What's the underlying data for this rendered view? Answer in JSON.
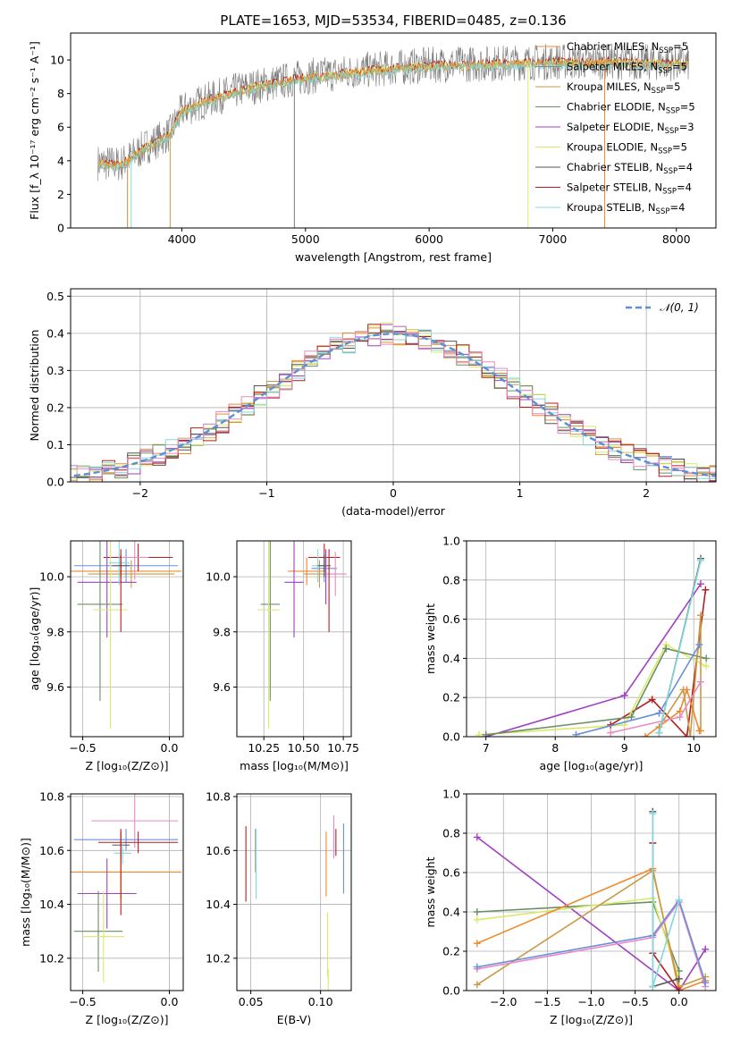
{
  "figure_title": "PLATE=1653, MJD=53534, FIBERID=0485, z=0.136",
  "colors": {
    "Chabrier MILES": "#ee8a2e",
    "Salpeter MILES": "#8a8a8a",
    "Kroupa MILES": "#c89a45",
    "Chabrier ELODIE": "#6a8f64",
    "Salpeter ELODIE": "#a040c0",
    "Kroupa ELODIE": "#d9ea6a",
    "Chabrier STELIB": "#555555",
    "Salpeter STELIB": "#b41e1e",
    "Kroupa STELIB": "#82d8dc",
    "extra_pink": "#e78ac3",
    "extra_blue": "#6a8fd8",
    "normal": "#5b8fd6",
    "spectrum": "#7a7a7a",
    "grid": "#b0b0b0"
  },
  "chart_data": [
    {
      "id": "spectrum",
      "type": "line",
      "title": "PLATE=1653, MJD=53534, FIBERID=0485, z=0.136",
      "xlabel": "wavelength [Angstrom, rest frame]",
      "ylabel": "Flux [f_λ 10⁻¹⁷ erg cm⁻² s⁻¹ A⁻¹]",
      "xlim": [
        3100,
        8320
      ],
      "ylim": [
        0,
        11.6
      ],
      "xticks": [
        4000,
        5000,
        6000,
        7000,
        8000
      ],
      "yticks": [
        0,
        2,
        4,
        6,
        8,
        10
      ],
      "grid": false,
      "legend_position": "top-right",
      "legend": [
        {
          "label": "Chabrier MILES, N",
          "sub": "SSP",
          "val": "=5"
        },
        {
          "label": "Salpeter MILES, N",
          "sub": "SSP",
          "val": "=5"
        },
        {
          "label": "Kroupa MILES, N",
          "sub": "SSP",
          "val": "=5"
        },
        {
          "label": "Chabrier ELODIE, N",
          "sub": "SSP",
          "val": "=5"
        },
        {
          "label": "Salpeter ELODIE, N",
          "sub": "SSP",
          "val": "=3"
        },
        {
          "label": "Kroupa ELODIE, N",
          "sub": "SSP",
          "val": "=5"
        },
        {
          "label": "Chabrier STELIB, N",
          "sub": "SSP",
          "val": "=4"
        },
        {
          "label": "Salpeter STELIB, N",
          "sub": "SSP",
          "val": "=4"
        },
        {
          "label": "Kroupa STELIB, N",
          "sub": "SSP",
          "val": "=4"
        }
      ],
      "continuum": {
        "x": [
          3320,
          3500,
          3700,
          3900,
          4000,
          4200,
          4500,
          5000,
          5500,
          6000,
          6500,
          7000,
          7500,
          8100
        ],
        "y": [
          3.9,
          3.8,
          4.8,
          5.6,
          7.0,
          7.6,
          8.3,
          9.0,
          9.4,
          9.7,
          9.8,
          9.9,
          9.9,
          9.8
        ]
      }
    },
    {
      "id": "residuals",
      "type": "histogram",
      "xlabel": "(data-model)/error",
      "ylabel": "Normed distribution",
      "xlim": [
        -2.55,
        2.55
      ],
      "ylim": [
        0,
        0.52
      ],
      "xticks": [
        -2,
        -1,
        0,
        1,
        2
      ],
      "yticks": [
        0.0,
        0.1,
        0.2,
        0.3,
        0.4,
        0.5
      ],
      "grid": true,
      "legend_position": "top-right",
      "legend": [
        {
          "label": "𝒩(0, 1)"
        }
      ],
      "bin_width": 0.1
    },
    {
      "id": "age_vs_Z",
      "type": "errorbar",
      "xlabel": "Z [log₁₀(Z/Z⊙)]",
      "ylabel": "age  [log₁₀(age/yr)]",
      "xlim": [
        -0.57,
        0.08
      ],
      "ylim": [
        9.42,
        10.13
      ],
      "xticks": [
        -0.5,
        0.0
      ],
      "yticks": [
        9.6,
        9.8,
        10.0
      ],
      "points": [
        {
          "s": "Chabrier MILES",
          "x": -0.28,
          "xerr": 0.35,
          "y": 10.02,
          "yerr": 0.04
        },
        {
          "s": "Kroupa MILES",
          "x": -0.22,
          "xerr": 0.25,
          "y": 10.01,
          "yerr": 0.05
        },
        {
          "s": "extra_blue",
          "x": -0.25,
          "xerr": 0.3,
          "y": 10.04,
          "yerr": 0.06
        },
        {
          "s": "Salpeter STELIB",
          "x": -0.18,
          "xerr": 0.2,
          "y": 10.07,
          "yerr": 0.05
        },
        {
          "s": "extra_pink",
          "x": -0.2,
          "xerr": 0.08,
          "y": 10.07,
          "yerr": 0.08
        },
        {
          "s": "Salpeter ELODIE",
          "x": -0.36,
          "xerr": 0.17,
          "y": 9.98,
          "yerr": 0.2
        },
        {
          "s": "Chabrier ELODIE",
          "x": -0.4,
          "xerr": 0.13,
          "y": 9.9,
          "yerr": 0.35
        },
        {
          "s": "Kroupa ELODIE",
          "x": -0.34,
          "xerr": 0.1,
          "y": 9.88,
          "yerr": 0.43
        },
        {
          "s": "Kroupa STELIB",
          "x": -0.29,
          "xerr": 0.06,
          "y": 10.05,
          "yerr": 0.08
        },
        {
          "s": "Chabrier STELIB",
          "x": -0.28,
          "xerr": 0.05,
          "y": 10.04,
          "yerr": 0.04
        },
        {
          "s": "Salpeter STELIB",
          "x": -0.28,
          "xerr": 0.0,
          "y": 9.95,
          "yerr": 0.15
        }
      ]
    },
    {
      "id": "age_vs_mass",
      "type": "errorbar",
      "xlabel": "mass [log₁₀(M/M⊙)]",
      "ylabel": "",
      "xlim": [
        10.08,
        10.8
      ],
      "ylim": [
        9.42,
        10.13
      ],
      "xticks": [
        10.25,
        10.5,
        10.75
      ],
      "yticks": [
        9.6,
        9.8,
        10.0
      ],
      "points": [
        {
          "s": "Chabrier MILES",
          "x": 10.52,
          "xerr": 0.12,
          "y": 10.02,
          "yerr": 0.05
        },
        {
          "s": "Kroupa MILES",
          "x": 10.6,
          "xerr": 0.1,
          "y": 10.01,
          "yerr": 0.05
        },
        {
          "s": "extra_blue",
          "x": 10.63,
          "xerr": 0.08,
          "y": 10.03,
          "yerr": 0.05
        },
        {
          "s": "Salpeter STELIB",
          "x": 10.63,
          "xerr": 0.1,
          "y": 10.07,
          "yerr": 0.05
        },
        {
          "s": "extra_pink",
          "x": 10.7,
          "xerr": 0.07,
          "y": 10.01,
          "yerr": 0.08
        },
        {
          "s": "Salpeter ELODIE",
          "x": 10.44,
          "xerr": 0.06,
          "y": 9.98,
          "yerr": 0.2
        },
        {
          "s": "Chabrier ELODIE",
          "x": 10.29,
          "xerr": 0.06,
          "y": 9.9,
          "yerr": 0.35
        },
        {
          "s": "Kroupa ELODIE",
          "x": 10.28,
          "xerr": 0.07,
          "y": 9.88,
          "yerr": 0.43
        },
        {
          "s": "Kroupa STELIB",
          "x": 10.59,
          "xerr": 0.04,
          "y": 10.04,
          "yerr": 0.06
        },
        {
          "s": "Chabrier STELIB",
          "x": 10.63,
          "xerr": 0.04,
          "y": 10.04,
          "yerr": 0.04
        },
        {
          "s": "Salpeter STELIB",
          "x": 10.66,
          "xerr": 0.0,
          "y": 9.95,
          "yerr": 0.15
        },
        {
          "s": "Salpeter ELODIE",
          "x": 10.64,
          "xerr": 0.0,
          "y": 10.0,
          "yerr": 0.1
        }
      ]
    },
    {
      "id": "weight_vs_age",
      "type": "line",
      "xlabel": "age  [log₁₀(age/yr)]",
      "ylabel": "mass weight",
      "xlim": [
        6.72,
        10.32
      ],
      "ylim": [
        0,
        1.0
      ],
      "xticks": [
        7,
        8,
        9,
        10
      ],
      "yticks": [
        0.0,
        0.2,
        0.4,
        0.6,
        0.8,
        1.0
      ],
      "grid": true,
      "series": [
        {
          "s": "Salpeter ELODIE",
          "x": [
            7.0,
            9.0,
            10.1
          ],
          "y": [
            0.0,
            0.21,
            0.78
          ]
        },
        {
          "s": "Salpeter STELIB",
          "x": [
            8.8,
            9.4,
            9.9,
            10.17
          ],
          "y": [
            0.06,
            0.19,
            0.0,
            0.75
          ]
        },
        {
          "s": "Kroupa ELODIE",
          "x": [
            6.9,
            9.0,
            9.6,
            10.18
          ],
          "y": [
            0.01,
            0.06,
            0.47,
            0.36
          ]
        },
        {
          "s": "Chabrier ELODIE",
          "x": [
            7.0,
            9.1,
            9.6,
            10.18
          ],
          "y": [
            0.01,
            0.1,
            0.45,
            0.4
          ]
        },
        {
          "s": "Kroupa MILES",
          "x": [
            9.5,
            9.85,
            9.95,
            10.1,
            10.1
          ],
          "y": [
            0.05,
            0.24,
            0.0,
            0.62,
            0.03
          ]
        },
        {
          "s": "Chabrier MILES",
          "x": [
            9.3,
            9.8,
            9.9,
            10.08
          ],
          "y": [
            0.0,
            0.13,
            0.24,
            0.03
          ]
        },
        {
          "s": "extra_pink",
          "x": [
            8.8,
            9.8,
            10.1
          ],
          "y": [
            0.02,
            0.1,
            0.28
          ]
        },
        {
          "s": "extra_blue",
          "x": [
            8.3,
            9.5,
            10.08
          ],
          "y": [
            0.01,
            0.12,
            0.47
          ]
        },
        {
          "s": "Chabrier STELIB",
          "x": [
            9.5,
            10.1
          ],
          "y": [
            0.02,
            0.91
          ]
        },
        {
          "s": "Kroupa STELIB",
          "x": [
            9.5,
            10.1
          ],
          "y": [
            0.02,
            0.9
          ]
        }
      ]
    },
    {
      "id": "mass_vs_Z",
      "type": "errorbar",
      "xlabel": "Z [log₁₀(Z/Z⊙)]",
      "ylabel": "mass [log₁₀(M/M⊙)]",
      "xlim": [
        -0.57,
        0.08
      ],
      "ylim": [
        10.08,
        10.81
      ],
      "xticks": [
        -0.5,
        0.0
      ],
      "yticks": [
        10.2,
        10.4,
        10.6,
        10.8
      ],
      "points": [
        {
          "s": "extra_pink",
          "x": -0.2,
          "xerr": 0.25,
          "y": 10.71,
          "yerr": 0.1
        },
        {
          "s": "extra_blue",
          "x": -0.25,
          "xerr": 0.3,
          "y": 10.64,
          "yerr": 0.04
        },
        {
          "s": "Salpeter STELIB",
          "x": -0.18,
          "xerr": 0.23,
          "y": 10.63,
          "yerr": 0.04
        },
        {
          "s": "Chabrier STELIB",
          "x": -0.28,
          "xerr": 0.05,
          "y": 10.62,
          "yerr": 0.05
        },
        {
          "s": "Kroupa STELIB",
          "x": -0.27,
          "xerr": 0.05,
          "y": 10.59,
          "yerr": 0.04
        },
        {
          "s": "Chabrier MILES",
          "x": -0.28,
          "xerr": 0.35,
          "y": 10.52,
          "yerr": 0.1
        },
        {
          "s": "Salpeter ELODIE",
          "x": -0.36,
          "xerr": 0.17,
          "y": 10.44,
          "yerr": 0.13
        },
        {
          "s": "Salpeter STELIB",
          "x": -0.28,
          "xerr": 0.0,
          "y": 10.52,
          "yerr": 0.16
        },
        {
          "s": "Chabrier ELODIE",
          "x": -0.41,
          "xerr": 0.14,
          "y": 10.3,
          "yerr": 0.15
        },
        {
          "s": "Kroupa ELODIE",
          "x": -0.38,
          "xerr": 0.12,
          "y": 10.28,
          "yerr": 0.17
        }
      ]
    },
    {
      "id": "mass_vs_ebv",
      "type": "errorbar",
      "xlabel": "E(B-V)",
      "ylabel": "",
      "xlim": [
        0.04,
        0.122
      ],
      "ylim": [
        10.08,
        10.81
      ],
      "xticks": [
        0.05,
        0.1
      ],
      "yticks": [
        10.2,
        10.4,
        10.6,
        10.8
      ],
      "points": [
        {
          "s": "Salpeter STELIB",
          "x": 0.0465,
          "xerr": 0.0,
          "y": 10.55,
          "yerr": 0.14
        },
        {
          "s": "Chabrier STELIB",
          "x": 0.0535,
          "xerr": 0.0,
          "y": 10.6,
          "yerr": 0.08
        },
        {
          "s": "Kroupa STELIB",
          "x": 0.0538,
          "xerr": 0.0,
          "y": 10.55,
          "yerr": 0.13
        },
        {
          "s": "Chabrier MILES",
          "x": 0.104,
          "xerr": 0.0,
          "y": 10.55,
          "yerr": 0.12
        },
        {
          "s": "Kroupa ELODIE",
          "x": 0.105,
          "xerr": 0.0,
          "y": 10.25,
          "yerr": 0.12
        },
        {
          "s": "Kroupa ELODIE",
          "x": 0.1055,
          "xerr": 0.0,
          "y": 10.12,
          "yerr": 0.04
        },
        {
          "s": "extra_pink",
          "x": 0.1095,
          "xerr": 0.0,
          "y": 10.65,
          "yerr": 0.08
        },
        {
          "s": "Salpeter STELIB",
          "x": 0.111,
          "xerr": 0.0,
          "y": 10.63,
          "yerr": 0.05
        },
        {
          "s": "extra_blue",
          "x": 0.1165,
          "xerr": 0.0,
          "y": 10.57,
          "yerr": 0.13
        }
      ]
    },
    {
      "id": "weight_vs_Z",
      "type": "line",
      "xlabel": "Z [log₁₀(Z/Z⊙)]",
      "ylabel": "mass weight",
      "xlim": [
        -2.42,
        0.42
      ],
      "ylim": [
        0,
        1.0
      ],
      "xticks": [
        -2.0,
        -1.5,
        -1.0,
        -0.5,
        0.0
      ],
      "yticks": [
        0.0,
        0.2,
        0.4,
        0.6,
        0.8,
        1.0
      ],
      "grid": true,
      "series": [
        {
          "s": "Salpeter ELODIE",
          "x": [
            -2.3,
            0.0,
            0.3
          ],
          "y": [
            0.78,
            0.0,
            0.21
          ]
        },
        {
          "s": "Chabrier ELODIE",
          "x": [
            -2.3,
            -0.3,
            0.0
          ],
          "y": [
            0.4,
            0.45,
            0.1
          ]
        },
        {
          "s": "Kroupa ELODIE",
          "x": [
            -2.3,
            -0.3,
            0.0
          ],
          "y": [
            0.36,
            0.47,
            0.06
          ]
        },
        {
          "s": "Chabrier MILES",
          "x": [
            -2.3,
            -0.3,
            0.0,
            0.3
          ],
          "y": [
            0.24,
            0.62,
            0.0,
            0.05
          ]
        },
        {
          "s": "Kroupa MILES",
          "x": [
            -2.3,
            -0.3,
            0.0,
            0.3
          ],
          "y": [
            0.03,
            0.61,
            0.02,
            0.07
          ]
        },
        {
          "s": "extra_pink",
          "x": [
            -2.3,
            -0.3,
            0.0,
            0.3
          ],
          "y": [
            0.11,
            0.27,
            0.45,
            0.02
          ]
        },
        {
          "s": "extra_blue",
          "x": [
            -2.3,
            -0.3,
            0.0,
            0.3
          ],
          "y": [
            0.12,
            0.28,
            0.46,
            0.04
          ]
        },
        {
          "s": "Salpeter STELIB",
          "x": [
            -0.3,
            -0.3,
            0.0
          ],
          "y": [
            0.75,
            0.19,
            0.0
          ]
        },
        {
          "s": "Chabrier STELIB",
          "x": [
            -0.3,
            -0.3,
            0.0
          ],
          "y": [
            0.91,
            0.02,
            0.06
          ]
        },
        {
          "s": "Kroupa STELIB",
          "x": [
            -0.3,
            -0.3,
            0.0
          ],
          "y": [
            0.9,
            0.02,
            0.46
          ]
        }
      ]
    }
  ]
}
